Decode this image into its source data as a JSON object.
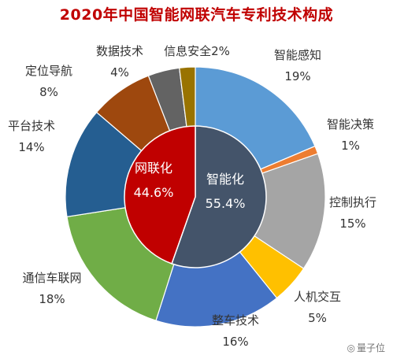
{
  "chart_data": {
    "type": "pie",
    "title": "2020年中国智能网联汽车专利技术构成",
    "outer_ring": [
      {
        "label": "智能感知",
        "pct": "19%",
        "value": 19,
        "color": "#5b9bd5"
      },
      {
        "label": "智能决策",
        "pct": "1%",
        "value": 1,
        "color": "#ed7d31"
      },
      {
        "label": "控制执行",
        "pct": "15%",
        "value": 15,
        "color": "#a5a5a5"
      },
      {
        "label": "人机交互",
        "pct": "5%",
        "value": 5,
        "color": "#ffc000"
      },
      {
        "label": "整车技术",
        "pct": "16%",
        "value": 16,
        "color": "#4472c4"
      },
      {
        "label": "通信车联网",
        "pct": "18%",
        "value": 18,
        "color": "#70ad47"
      },
      {
        "label": "平台技术",
        "pct": "14%",
        "value": 14,
        "color": "#255e91"
      },
      {
        "label": "定位导航",
        "pct": "8%",
        "value": 8,
        "color": "#9e480e"
      },
      {
        "label": "数据技术",
        "pct": "4%",
        "value": 4,
        "color": "#636363"
      },
      {
        "label": "信息安全",
        "pct": "2%",
        "value": 2,
        "color": "#997300"
      }
    ],
    "inner_pie": [
      {
        "label": "智能化",
        "pct": "55.4%",
        "value": 55.4,
        "color": "#44546a"
      },
      {
        "label": "网联化",
        "pct": "44.6%",
        "value": 44.6,
        "color": "#c00000"
      }
    ]
  },
  "watermark": {
    "text": "量子位",
    "icon": "wechat-icon"
  }
}
